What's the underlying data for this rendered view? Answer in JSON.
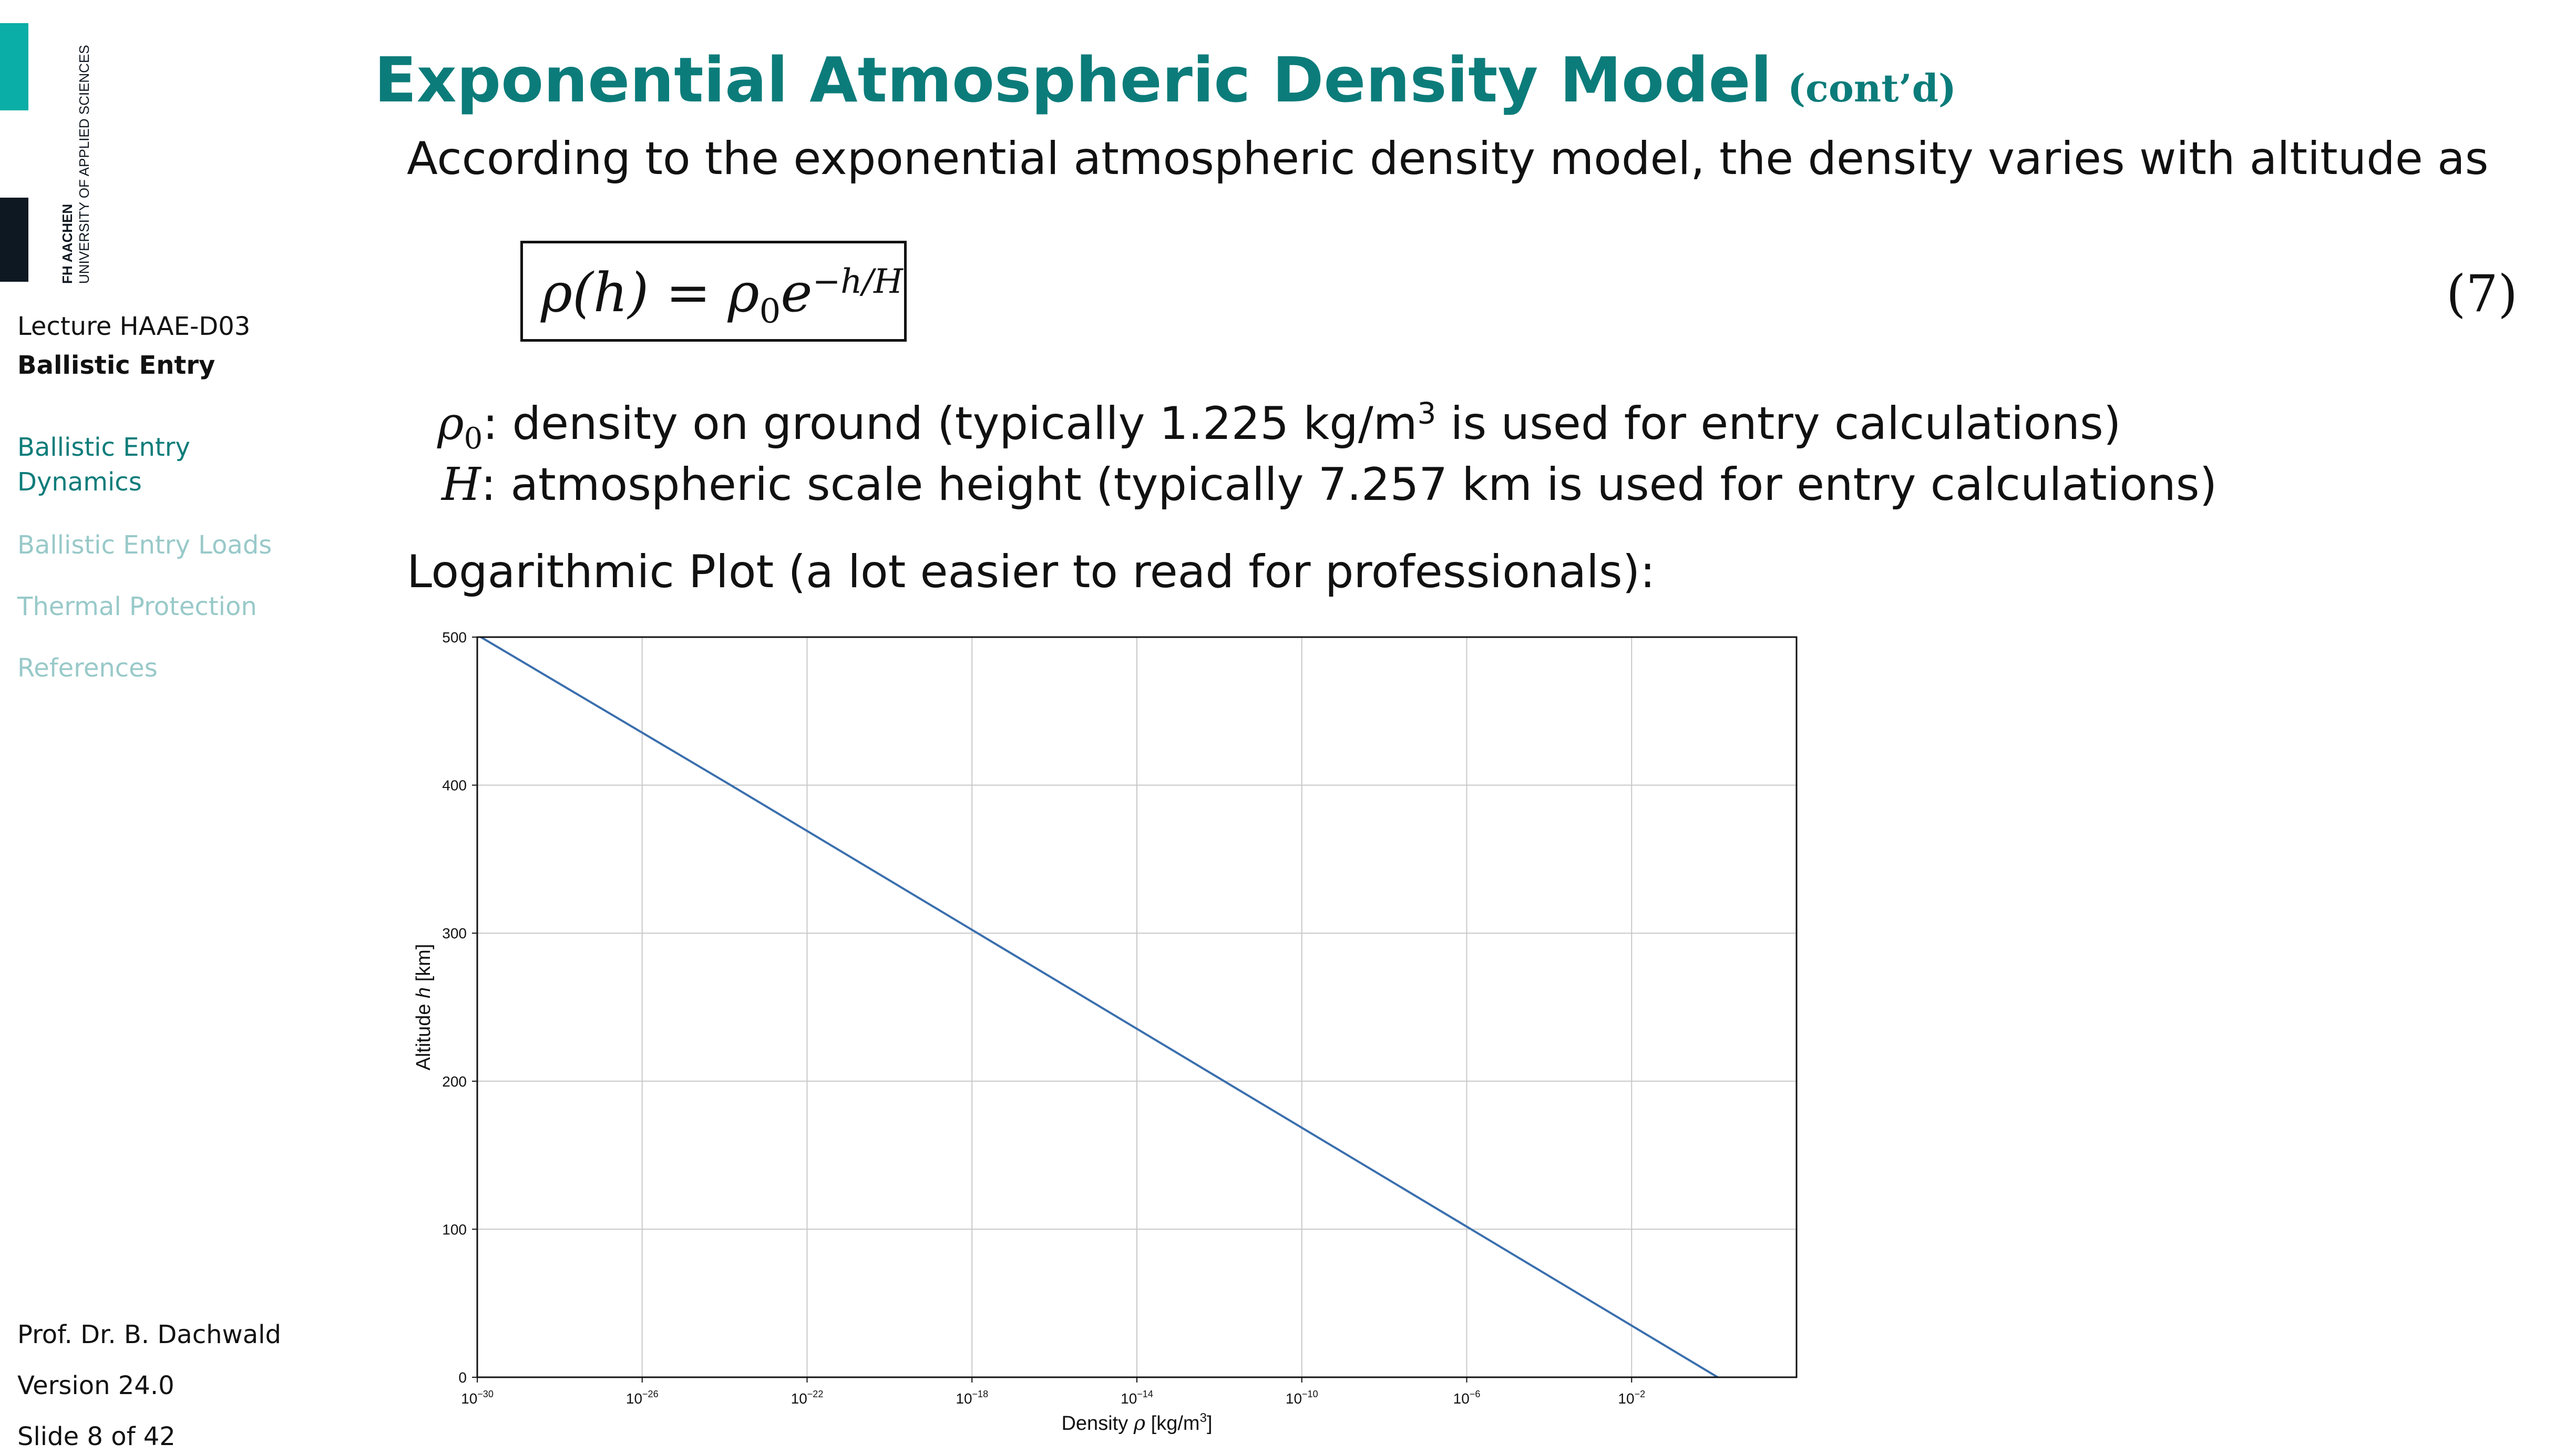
{
  "colors": {
    "accent": "#0b7c7a",
    "brand_teal": "#0aaea6",
    "brand_dark": "#0e1822",
    "nav_inactive": "#99c9c9",
    "plot_line": "#3b6fad",
    "grid": "#c8c8c8"
  },
  "brand": {
    "line1": "FH AACHEN",
    "line2": "UNIVERSITY OF APPLIED SCIENCES"
  },
  "sidebar": {
    "lecture": "Lecture HAAE-D03",
    "section": "Ballistic Entry",
    "nav": [
      {
        "label_line1": "Ballistic Entry",
        "label_line2": "Dynamics",
        "active": true
      },
      {
        "label_line1": "Ballistic Entry Loads",
        "active": false
      },
      {
        "label_line1": "Thermal Protection",
        "active": false
      },
      {
        "label_line1": "References",
        "active": false
      }
    ],
    "author": "Prof. Dr. B. Dachwald",
    "version": "Version 24.0",
    "slide": "Slide 8 of 42"
  },
  "slide": {
    "title": "Exponential Atmospheric Density Model",
    "title_suffix": "(cont’d)",
    "intro": "According to the exponential atmospheric density model, the density varies with altitude as",
    "equation_number": "(7)",
    "def_rho0": {
      "symbol": "ρ",
      "subscript": "0",
      "text_a": "density on ground (typically 1.225 kg/m",
      "superscript": "3",
      "text_b": " is used for entry calculations)"
    },
    "def_H": {
      "symbol": "H",
      "text": "atmospheric scale height (typically 7.257 km is used for entry calculations)"
    },
    "plot_caption": "Logarithmic Plot (a lot easier to read for professionals):"
  },
  "equation": {
    "lhs": "ρ(h)",
    "equals": "=",
    "rho": "ρ",
    "sub": "0",
    "e": "e",
    "exponent": "−h/H"
  },
  "chart_data": {
    "type": "line",
    "x_scale": "log",
    "xlim": [
      1e-30,
      100.0
    ],
    "ylim": [
      0,
      500
    ],
    "x_ticks": [
      1e-30,
      1e-26,
      1e-22,
      1e-18,
      1e-14,
      1e-10,
      1e-06,
      0.01
    ],
    "x_tick_labels": [
      "10−30",
      "10−26",
      "10−22",
      "10−18",
      "10−14",
      "10−10",
      "10−6",
      "10−2"
    ],
    "y_ticks": [
      0,
      100,
      200,
      300,
      400,
      500
    ],
    "y_tick_labels": [
      "0",
      "100",
      "200",
      "300",
      "400",
      "500"
    ],
    "xlabel": "Density ρ [kg/m3]",
    "ylabel": "Altitude h [km]",
    "grid": true,
    "series": [
      {
        "x": [
          1.225,
          1.225e-06,
          1.225e-12,
          1.225e-18,
          1.225e-24,
          1.225e-30
        ],
        "y": [
          0,
          100.3,
          200.5,
          300.8,
          401.0,
          501.3
        ]
      }
    ]
  }
}
